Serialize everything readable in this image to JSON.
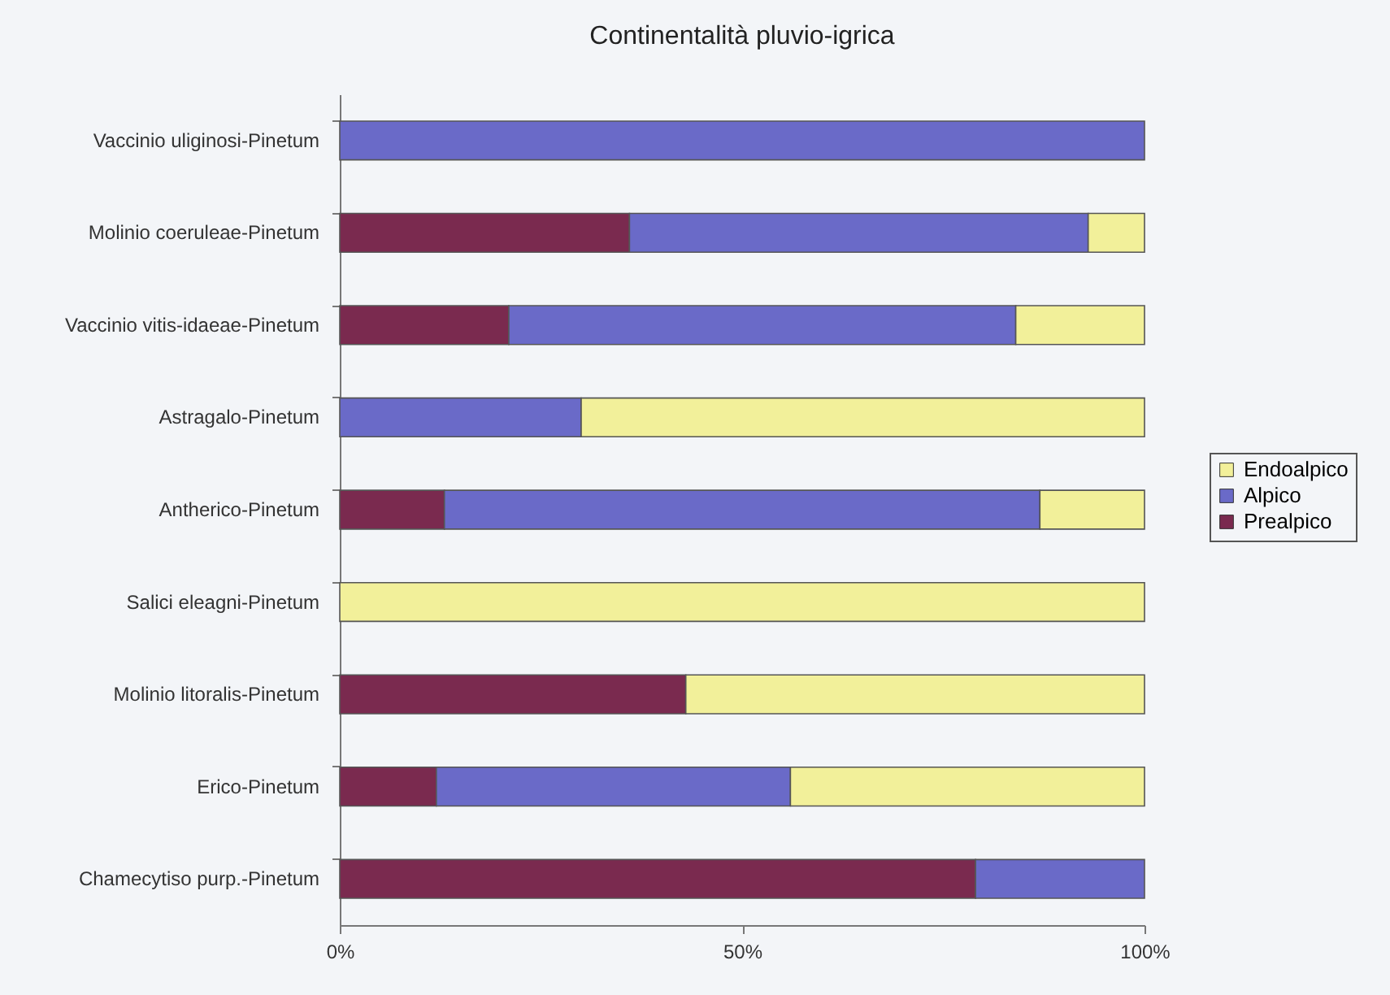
{
  "chart_data": {
    "type": "bar",
    "title": "Continentalità pluvio-igrica",
    "orientation": "horizontal",
    "stacked": true,
    "categories": [
      "Vaccinio uliginosi-Pinetum",
      "Molinio coeruleae-Pinetum",
      "Vaccinio vitis-idaeae-Pinetum",
      "Astragalo-Pinetum",
      "Antherico-Pinetum",
      "Salici eleagni-Pinetum",
      "Molinio litoralis-Pinetum",
      "Erico-Pinetum",
      "Chamecytiso purp.-Pinetum"
    ],
    "series": [
      {
        "name": "Prealpico",
        "color": "#7a2a4f",
        "values": [
          0,
          36,
          21,
          0,
          13,
          0,
          43,
          12,
          79
        ]
      },
      {
        "name": "Alpico",
        "color": "#6a6ac8",
        "values": [
          100,
          57,
          63,
          30,
          74,
          0,
          0,
          44,
          21
        ]
      },
      {
        "name": "Endoalpico",
        "color": "#f2f09a",
        "values": [
          0,
          7,
          16,
          70,
          13,
          100,
          57,
          44,
          0
        ]
      }
    ],
    "xlim": [
      0,
      100
    ],
    "xticks": [
      {
        "value": 0,
        "label": "0%"
      },
      {
        "value": 50,
        "label": "50%"
      },
      {
        "value": 100,
        "label": "100%"
      }
    ],
    "grid": false,
    "legend": "right"
  }
}
